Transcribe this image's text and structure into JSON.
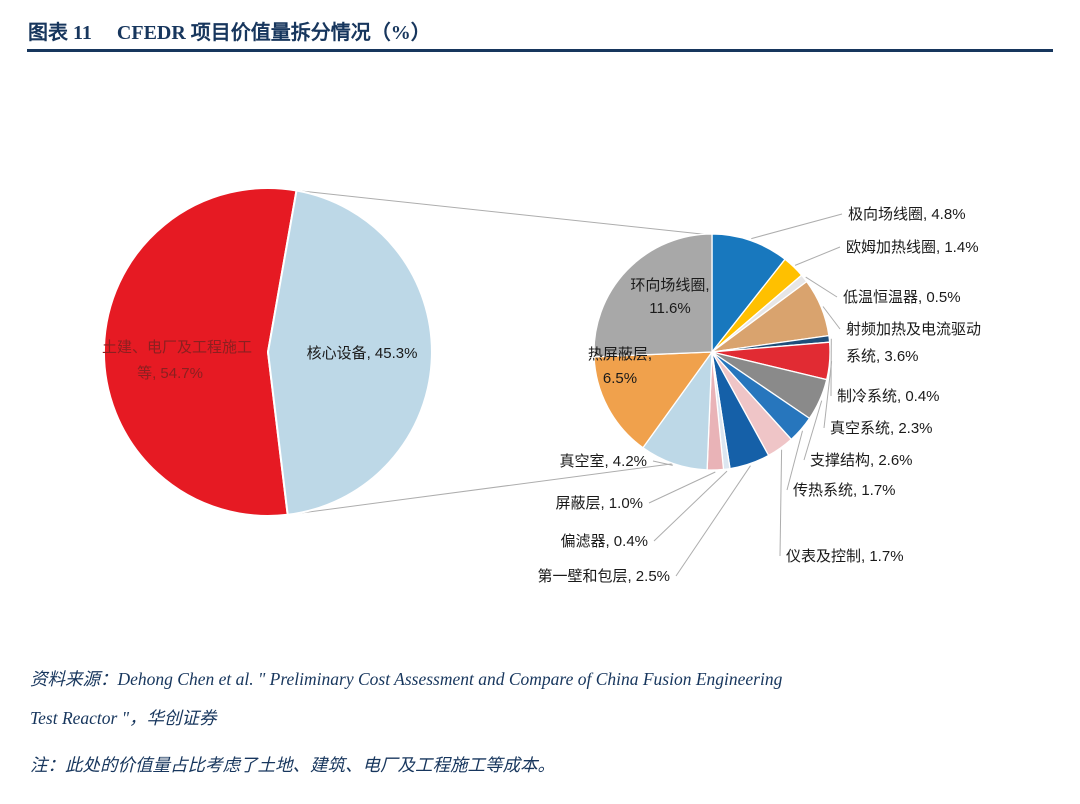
{
  "colors": {
    "accent_navy": "#17365D",
    "leader_line": "#ADADAD",
    "label_text": "#1A1A1A",
    "main_label_red_text": "#8B2020",
    "background": "#FFFFFF"
  },
  "header": {
    "figure_label": "图表 11",
    "figure_title": "CFEDR 项目价值量拆分情况（%）"
  },
  "chart_data": {
    "type": "pie-of-pie",
    "title": "CFEDR 项目价值量拆分情况（%）",
    "legend_position": "none",
    "grid": false,
    "main_pie": {
      "slices": [
        {
          "name": "土建、电厂及工程施工等",
          "value": 54.7,
          "color": "#E61A23"
        },
        {
          "name": "核心设备",
          "value": 45.3,
          "color": "#BDD8E7"
        }
      ]
    },
    "secondary_pie": {
      "represents": "核心设备",
      "slices": [
        {
          "name": "极向场线圈",
          "value": 4.8,
          "color": "#1878BE"
        },
        {
          "name": "欧姆加热线圈",
          "value": 1.4,
          "color": "#FFC000"
        },
        {
          "name": "低温恒温器",
          "value": 0.5,
          "color": "#E7E6E6"
        },
        {
          "name": "射频加热及电流驱动系统",
          "value": 3.6,
          "color": "#D9A36E"
        },
        {
          "name": "制冷系统",
          "value": 0.4,
          "color": "#1F4E79"
        },
        {
          "name": "真空系统",
          "value": 2.3,
          "color": "#E12B33"
        },
        {
          "name": "支撑结构",
          "value": 2.6,
          "color": "#8A8A8A"
        },
        {
          "name": "传热系统",
          "value": 1.7,
          "color": "#2776BD"
        },
        {
          "name": "仪表及控制",
          "value": 1.7,
          "color": "#EFC5C7"
        },
        {
          "name": "第一壁和包层",
          "value": 2.5,
          "color": "#1560A8"
        },
        {
          "name": "偏滤器",
          "value": 0.4,
          "color": "#DCE6F1"
        },
        {
          "name": "屏蔽层",
          "value": 1.0,
          "color": "#E9B3B7"
        },
        {
          "name": "真空室",
          "value": 4.2,
          "color": "#BDD8E7"
        },
        {
          "name": "热屏蔽层",
          "value": 6.5,
          "color": "#F0A14C"
        },
        {
          "name": "环向场线圈",
          "value": 11.6,
          "color": "#A8A8A8"
        }
      ]
    }
  },
  "footer": {
    "source_lines": [
      "资料来源：Dehong Chen et al. \" Preliminary Cost Assessment and Compare of China Fusion Engineering",
      "Test Reactor \"，华创证券"
    ],
    "note": "注：此处的价值量占比考虑了土地、建筑、电厂及工程施工等成本。"
  }
}
